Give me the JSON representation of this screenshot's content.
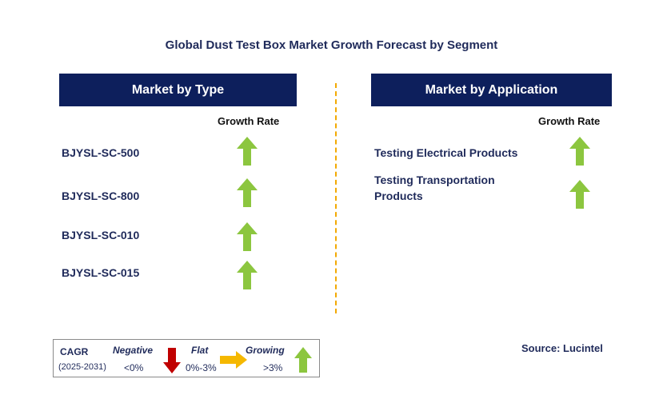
{
  "title": "Global Dust Test Box Market Growth Forecast by Segment",
  "left_panel": {
    "header": "Market by Type",
    "growth_rate_label": "Growth Rate",
    "items": [
      {
        "label": "BJYSL-SC-500",
        "trend": "growing"
      },
      {
        "label": "BJYSL-SC-800",
        "trend": "growing"
      },
      {
        "label": "BJYSL-SC-010",
        "trend": "growing"
      },
      {
        "label": "BJYSL-SC-015",
        "trend": "growing"
      }
    ]
  },
  "right_panel": {
    "header": "Market by Application",
    "growth_rate_label": "Growth Rate",
    "items": [
      {
        "label_line1": "Testing Electrical Products",
        "trend": "growing"
      },
      {
        "label_line1": "Testing Transportation",
        "label_line2": "Products",
        "trend": "growing"
      }
    ]
  },
  "legend": {
    "cagr_label": "CAGR",
    "period": "(2025-2031)",
    "negative_label": "Negative",
    "negative_range": "<0%",
    "flat_label": "Flat",
    "flat_range": "0%-3%",
    "growing_label": "Growing",
    "growing_range": ">3%"
  },
  "source": "Source: Lucintel",
  "colors": {
    "header_bg": "#0d1f5c",
    "growing_arrow": "#8cc63f",
    "negative_arrow": "#c00000",
    "flat_arrow": "#f5b800",
    "divider": "#f2a900"
  },
  "icons": {
    "growing": "up-arrow-icon",
    "negative": "down-arrow-icon",
    "flat": "right-arrow-icon"
  }
}
